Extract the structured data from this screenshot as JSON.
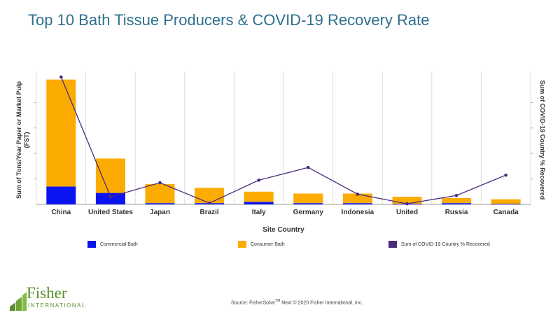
{
  "title": "Top 10 Bath Tissue Producers & COVID-19 Recovery Rate",
  "chart_data": {
    "type": "bar",
    "stacked": true,
    "title": "Top 10 Bath Tissue Producers & COVID-19 Recovery Rate",
    "xlabel": "Site Country",
    "ylabel": "Sum of Tons/Year Paper or Market Pulp (FST)",
    "y2label": "Sum of COVID-19 Country % Recovered",
    "categories": [
      "China",
      "United States",
      "Japan",
      "Brazil",
      "Italy",
      "Germany",
      "Indonesia",
      "United",
      "Russia",
      "Canada"
    ],
    "ylim": [
      0,
      100
    ],
    "y2lim": [
      0,
      100
    ],
    "series": [
      {
        "name": "Commercial Bath",
        "type": "bar",
        "color": "#0a14f0",
        "values": [
          14,
          9,
          1,
          1,
          2,
          1,
          1,
          0.5,
          1,
          0.5
        ]
      },
      {
        "name": "Consumer Bath",
        "type": "bar",
        "color": "#fcac00",
        "values": [
          84,
          27,
          15,
          12,
          8,
          7.5,
          7.5,
          5.5,
          4,
          3.5
        ]
      },
      {
        "name": "Sum of COVID-19 Country % Recovered",
        "type": "line",
        "color": "#4b2a7b",
        "values": [
          100,
          6,
          17,
          1,
          19,
          29,
          8,
          0.5,
          7,
          23
        ]
      }
    ],
    "legend_position": "bottom"
  },
  "source_text": "Source: FisherSolve",
  "source_tm": "TM",
  "source_rest": " Next © 2020 Fisher International, Inc.",
  "logo": {
    "word": "Fisher",
    "sub": "INTERNATIONAL"
  }
}
